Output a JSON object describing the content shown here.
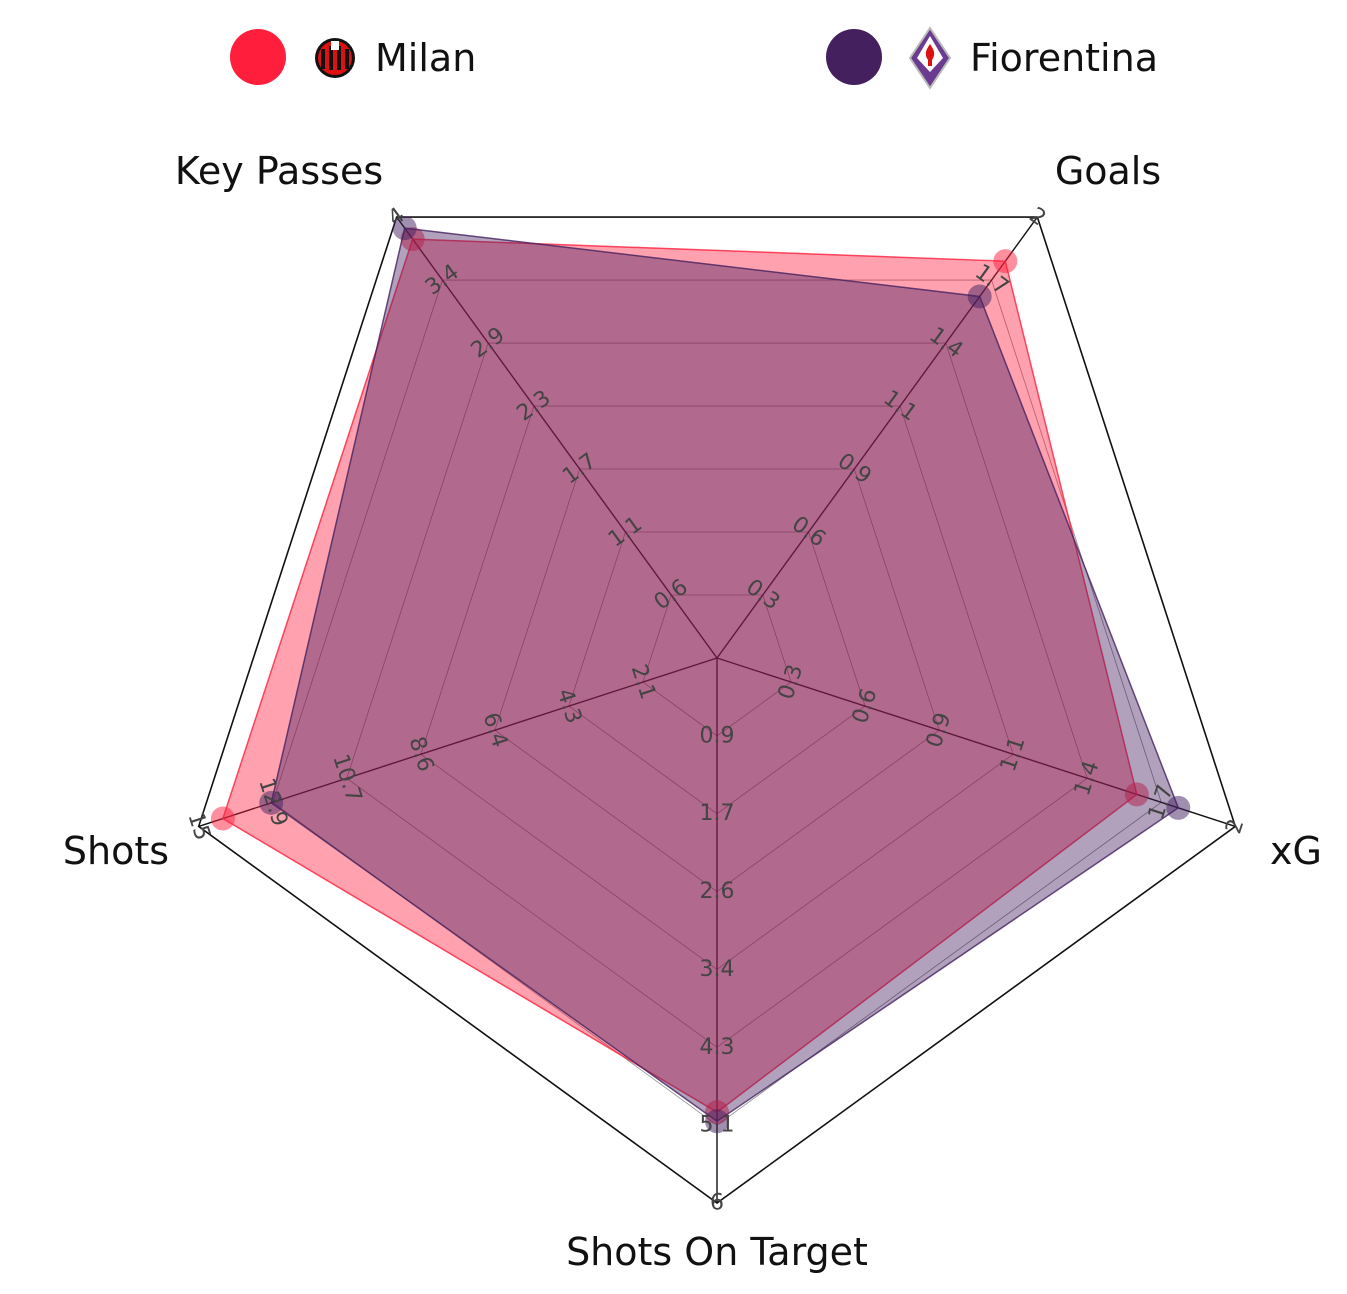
{
  "legend": {
    "milan": {
      "name": "Milan",
      "color": "#ff1f3d",
      "logo_icon": "ac-milan-crest-icon"
    },
    "fiorentina": {
      "name": "Fiorentina",
      "color": "#44205f",
      "logo_icon": "fiorentina-crest-icon"
    }
  },
  "chart_data": {
    "type": "radar",
    "axes": [
      {
        "label": "Key Passes",
        "max": 4,
        "ticks": [
          "0.6",
          "1.1",
          "1.7",
          "2.3",
          "2.9",
          "3.4",
          "4"
        ]
      },
      {
        "label": "Goals",
        "max": 2,
        "ticks": [
          "0.3",
          "0.6",
          "0.9",
          "1.1",
          "1.4",
          "1.7",
          "2"
        ]
      },
      {
        "label": "xG",
        "max": 2,
        "ticks": [
          "0.3",
          "0.6",
          "0.9",
          "1.1",
          "1.4",
          "1.7",
          "2"
        ]
      },
      {
        "label": "Shots On Target",
        "max": 6,
        "ticks": [
          "0.9",
          "1.7",
          "2.6",
          "3.4",
          "4.3",
          "5.1",
          "6"
        ]
      },
      {
        "label": "Shots",
        "max": 15,
        "ticks": [
          "2.1",
          "4.3",
          "6.4",
          "8.6",
          "10.7",
          "12.9",
          "15"
        ]
      }
    ],
    "series": [
      {
        "name": "Milan",
        "color": "#ff1f3d",
        "values": [
          3.8,
          1.8,
          1.62,
          5.0,
          14.3
        ]
      },
      {
        "name": "Fiorentina",
        "color": "#44205f",
        "values": [
          3.9,
          1.64,
          1.78,
          5.1,
          12.9
        ]
      }
    ]
  }
}
